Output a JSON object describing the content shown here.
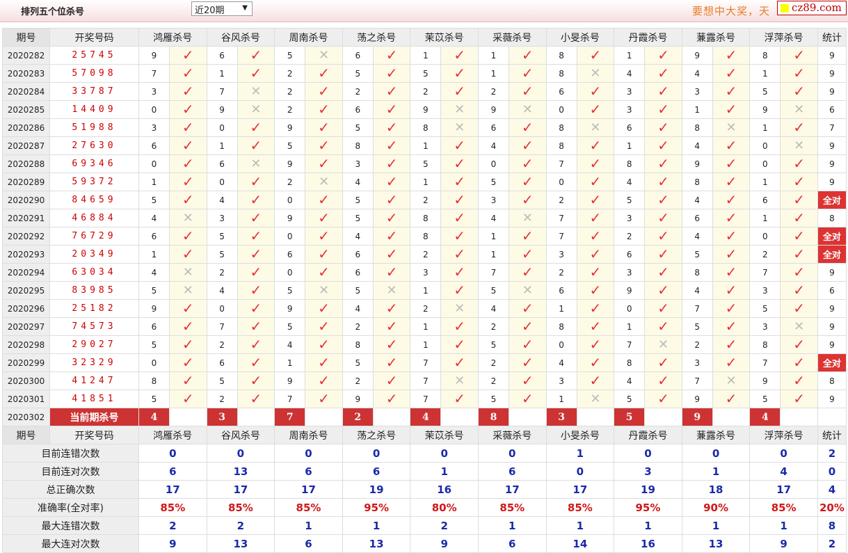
{
  "header": {
    "title": "排列五个位杀号",
    "period_select": "近20期",
    "slogan": "要想中大奖，天",
    "logo_text": "cz89.com"
  },
  "columns": {
    "period": "期号",
    "draw": "开奖号码",
    "experts": [
      "鸿雁杀号",
      "谷风杀号",
      "周南杀号",
      "荡之杀号",
      "茉苡杀号",
      "采薇杀号",
      "小旻杀号",
      "丹霞杀号",
      "蒹露杀号",
      "浮萍杀号"
    ],
    "stat": "统计"
  },
  "all_correct_label": "全对",
  "rows": [
    {
      "period": "2020282",
      "draw": "25745",
      "kills": [
        [
          9,
          1
        ],
        [
          6,
          1
        ],
        [
          5,
          0
        ],
        [
          6,
          1
        ],
        [
          1,
          1
        ],
        [
          1,
          1
        ],
        [
          8,
          1
        ],
        [
          1,
          1
        ],
        [
          9,
          1
        ],
        [
          8,
          1
        ]
      ],
      "stat": "9"
    },
    {
      "period": "2020283",
      "draw": "57098",
      "kills": [
        [
          7,
          1
        ],
        [
          1,
          1
        ],
        [
          2,
          1
        ],
        [
          5,
          1
        ],
        [
          5,
          1
        ],
        [
          1,
          1
        ],
        [
          8,
          0
        ],
        [
          4,
          1
        ],
        [
          4,
          1
        ],
        [
          1,
          1
        ]
      ],
      "stat": "9"
    },
    {
      "period": "2020284",
      "draw": "33787",
      "kills": [
        [
          3,
          1
        ],
        [
          7,
          0
        ],
        [
          2,
          1
        ],
        [
          2,
          1
        ],
        [
          2,
          1
        ],
        [
          2,
          1
        ],
        [
          6,
          1
        ],
        [
          3,
          1
        ],
        [
          3,
          1
        ],
        [
          5,
          1
        ]
      ],
      "stat": "9"
    },
    {
      "period": "2020285",
      "draw": "14409",
      "kills": [
        [
          0,
          1
        ],
        [
          9,
          0
        ],
        [
          2,
          1
        ],
        [
          6,
          1
        ],
        [
          9,
          0
        ],
        [
          9,
          0
        ],
        [
          0,
          1
        ],
        [
          3,
          1
        ],
        [
          1,
          1
        ],
        [
          9,
          0
        ]
      ],
      "stat": "6"
    },
    {
      "period": "2020286",
      "draw": "51988",
      "kills": [
        [
          3,
          1
        ],
        [
          0,
          1
        ],
        [
          9,
          1
        ],
        [
          5,
          1
        ],
        [
          8,
          0
        ],
        [
          6,
          1
        ],
        [
          8,
          0
        ],
        [
          6,
          1
        ],
        [
          8,
          0
        ],
        [
          1,
          1
        ]
      ],
      "stat": "7"
    },
    {
      "period": "2020287",
      "draw": "27630",
      "kills": [
        [
          6,
          1
        ],
        [
          1,
          1
        ],
        [
          5,
          1
        ],
        [
          8,
          1
        ],
        [
          1,
          1
        ],
        [
          4,
          1
        ],
        [
          8,
          1
        ],
        [
          1,
          1
        ],
        [
          4,
          1
        ],
        [
          0,
          0
        ]
      ],
      "stat": "9"
    },
    {
      "period": "2020288",
      "draw": "69346",
      "kills": [
        [
          0,
          1
        ],
        [
          6,
          0
        ],
        [
          9,
          1
        ],
        [
          3,
          1
        ],
        [
          5,
          1
        ],
        [
          0,
          1
        ],
        [
          7,
          1
        ],
        [
          8,
          1
        ],
        [
          9,
          1
        ],
        [
          0,
          1
        ]
      ],
      "stat": "9"
    },
    {
      "period": "2020289",
      "draw": "59372",
      "kills": [
        [
          1,
          1
        ],
        [
          0,
          1
        ],
        [
          2,
          0
        ],
        [
          4,
          1
        ],
        [
          1,
          1
        ],
        [
          5,
          1
        ],
        [
          0,
          1
        ],
        [
          4,
          1
        ],
        [
          8,
          1
        ],
        [
          1,
          1
        ]
      ],
      "stat": "9"
    },
    {
      "period": "2020290",
      "draw": "84659",
      "kills": [
        [
          5,
          1
        ],
        [
          4,
          1
        ],
        [
          0,
          1
        ],
        [
          5,
          1
        ],
        [
          2,
          1
        ],
        [
          3,
          1
        ],
        [
          2,
          1
        ],
        [
          5,
          1
        ],
        [
          4,
          1
        ],
        [
          6,
          1
        ]
      ],
      "stat": "全对"
    },
    {
      "period": "2020291",
      "draw": "46884",
      "kills": [
        [
          4,
          0
        ],
        [
          3,
          1
        ],
        [
          9,
          1
        ],
        [
          5,
          1
        ],
        [
          8,
          1
        ],
        [
          4,
          0
        ],
        [
          7,
          1
        ],
        [
          3,
          1
        ],
        [
          6,
          1
        ],
        [
          1,
          1
        ]
      ],
      "stat": "8"
    },
    {
      "period": "2020292",
      "draw": "76729",
      "kills": [
        [
          6,
          1
        ],
        [
          5,
          1
        ],
        [
          0,
          1
        ],
        [
          4,
          1
        ],
        [
          8,
          1
        ],
        [
          1,
          1
        ],
        [
          7,
          1
        ],
        [
          2,
          1
        ],
        [
          4,
          1
        ],
        [
          0,
          1
        ]
      ],
      "stat": "全对"
    },
    {
      "period": "2020293",
      "draw": "20349",
      "kills": [
        [
          1,
          1
        ],
        [
          5,
          1
        ],
        [
          6,
          1
        ],
        [
          6,
          1
        ],
        [
          2,
          1
        ],
        [
          1,
          1
        ],
        [
          3,
          1
        ],
        [
          6,
          1
        ],
        [
          5,
          1
        ],
        [
          2,
          1
        ]
      ],
      "stat": "全对"
    },
    {
      "period": "2020294",
      "draw": "63034",
      "kills": [
        [
          4,
          0
        ],
        [
          2,
          1
        ],
        [
          0,
          1
        ],
        [
          6,
          1
        ],
        [
          3,
          1
        ],
        [
          7,
          1
        ],
        [
          2,
          1
        ],
        [
          3,
          1
        ],
        [
          8,
          1
        ],
        [
          7,
          1
        ]
      ],
      "stat": "9"
    },
    {
      "period": "2020295",
      "draw": "83985",
      "kills": [
        [
          5,
          0
        ],
        [
          4,
          1
        ],
        [
          5,
          0
        ],
        [
          5,
          0
        ],
        [
          1,
          1
        ],
        [
          5,
          0
        ],
        [
          6,
          1
        ],
        [
          9,
          1
        ],
        [
          4,
          1
        ],
        [
          3,
          1
        ]
      ],
      "stat": "6"
    },
    {
      "period": "2020296",
      "draw": "25182",
      "kills": [
        [
          9,
          1
        ],
        [
          0,
          1
        ],
        [
          9,
          1
        ],
        [
          4,
          1
        ],
        [
          2,
          0
        ],
        [
          4,
          1
        ],
        [
          1,
          1
        ],
        [
          0,
          1
        ],
        [
          7,
          1
        ],
        [
          5,
          1
        ]
      ],
      "stat": "9"
    },
    {
      "period": "2020297",
      "draw": "74573",
      "kills": [
        [
          6,
          1
        ],
        [
          7,
          1
        ],
        [
          5,
          1
        ],
        [
          2,
          1
        ],
        [
          1,
          1
        ],
        [
          2,
          1
        ],
        [
          8,
          1
        ],
        [
          1,
          1
        ],
        [
          5,
          1
        ],
        [
          3,
          0
        ]
      ],
      "stat": "9"
    },
    {
      "period": "2020298",
      "draw": "29027",
      "kills": [
        [
          5,
          1
        ],
        [
          2,
          1
        ],
        [
          4,
          1
        ],
        [
          8,
          1
        ],
        [
          1,
          1
        ],
        [
          5,
          1
        ],
        [
          0,
          1
        ],
        [
          7,
          0
        ],
        [
          2,
          1
        ],
        [
          8,
          1
        ]
      ],
      "stat": "9"
    },
    {
      "period": "2020299",
      "draw": "32329",
      "kills": [
        [
          0,
          1
        ],
        [
          6,
          1
        ],
        [
          1,
          1
        ],
        [
          5,
          1
        ],
        [
          7,
          1
        ],
        [
          2,
          1
        ],
        [
          4,
          1
        ],
        [
          8,
          1
        ],
        [
          3,
          1
        ],
        [
          7,
          1
        ]
      ],
      "stat": "全对"
    },
    {
      "period": "2020300",
      "draw": "41247",
      "kills": [
        [
          8,
          1
        ],
        [
          5,
          1
        ],
        [
          9,
          1
        ],
        [
          2,
          1
        ],
        [
          7,
          0
        ],
        [
          2,
          1
        ],
        [
          3,
          1
        ],
        [
          4,
          1
        ],
        [
          7,
          0
        ],
        [
          9,
          1
        ]
      ],
      "stat": "8"
    },
    {
      "period": "2020301",
      "draw": "41851",
      "kills": [
        [
          5,
          1
        ],
        [
          2,
          1
        ],
        [
          7,
          1
        ],
        [
          9,
          1
        ],
        [
          7,
          1
        ],
        [
          5,
          1
        ],
        [
          1,
          0
        ],
        [
          5,
          1
        ],
        [
          9,
          1
        ],
        [
          5,
          1
        ]
      ],
      "stat": "9"
    }
  ],
  "current": {
    "period": "2020302",
    "label": "当前期杀号",
    "kills": [
      "4",
      "3",
      "7",
      "2",
      "4",
      "8",
      "3",
      "5",
      "9",
      "4"
    ]
  },
  "stats": [
    {
      "label": "目前连错次数",
      "values": [
        "0",
        "0",
        "0",
        "0",
        "0",
        "0",
        "1",
        "0",
        "0",
        "0",
        "2"
      ],
      "red": false
    },
    {
      "label": "目前连对次数",
      "values": [
        "6",
        "13",
        "6",
        "6",
        "1",
        "6",
        "0",
        "3",
        "1",
        "4",
        "0"
      ],
      "red": false
    },
    {
      "label": "总正确次数",
      "values": [
        "17",
        "17",
        "17",
        "19",
        "16",
        "17",
        "17",
        "19",
        "18",
        "17",
        "4"
      ],
      "red": false
    },
    {
      "label": "准确率(全对率)",
      "values": [
        "85%",
        "85%",
        "85%",
        "95%",
        "80%",
        "85%",
        "85%",
        "95%",
        "90%",
        "85%",
        "20%"
      ],
      "red": true
    },
    {
      "label": "最大连错次数",
      "values": [
        "2",
        "2",
        "1",
        "1",
        "2",
        "1",
        "1",
        "1",
        "1",
        "1",
        "8"
      ],
      "red": false
    },
    {
      "label": "最大连对次数",
      "values": [
        "9",
        "13",
        "6",
        "13",
        "9",
        "6",
        "14",
        "16",
        "13",
        "9",
        "2"
      ],
      "red": false
    }
  ],
  "colors": {
    "check": "#e8303a",
    "accent": "#cd3333",
    "stat_value": "#1a2aa8"
  }
}
